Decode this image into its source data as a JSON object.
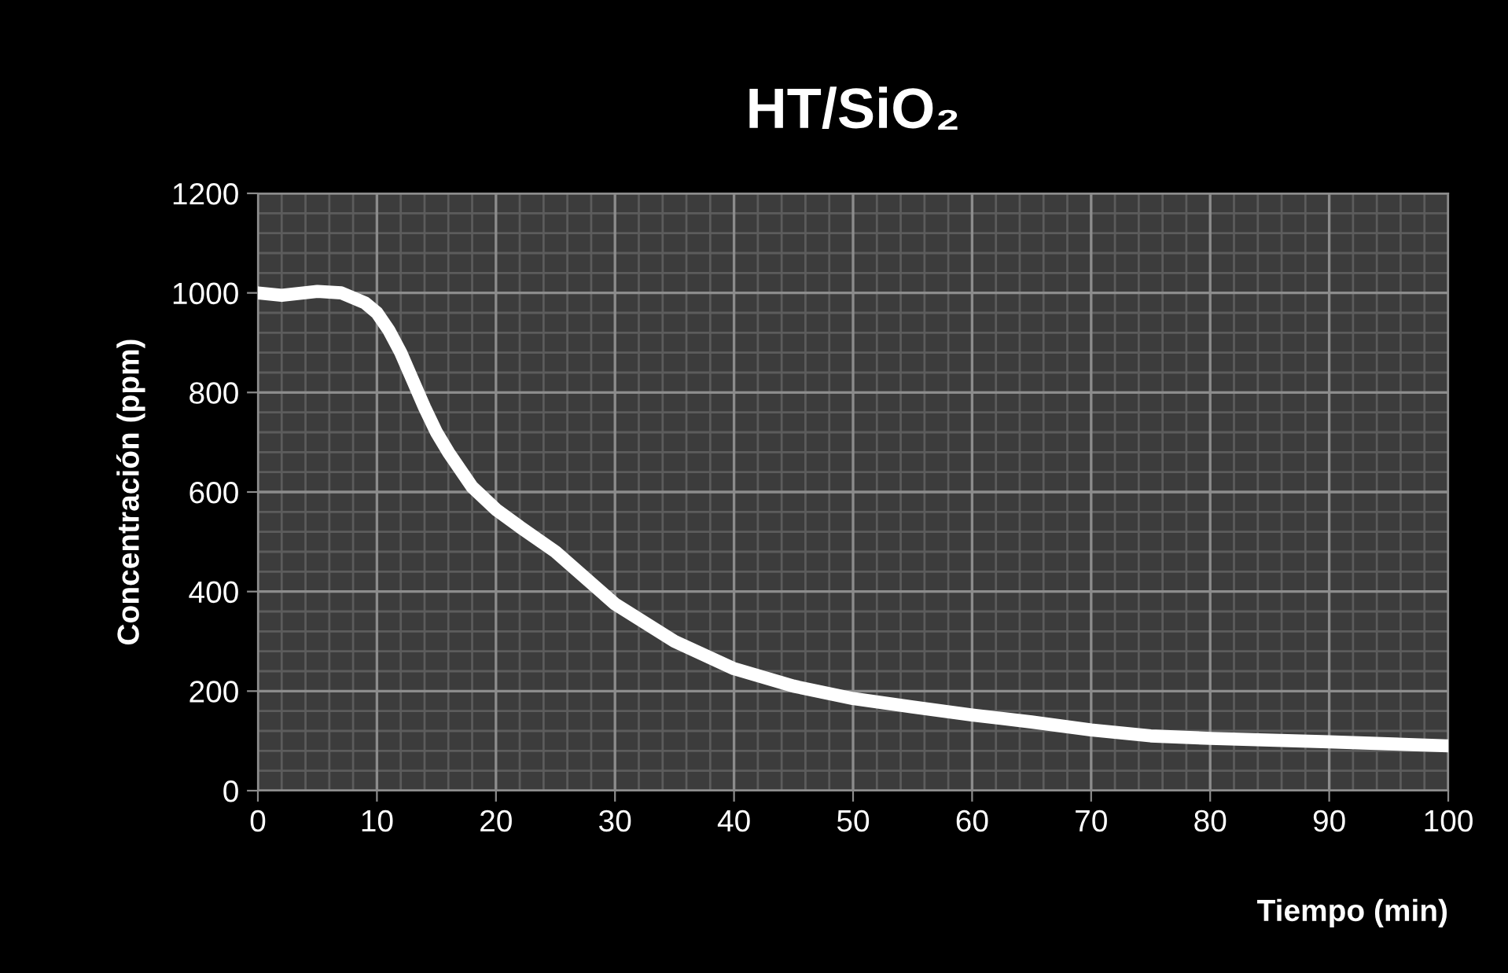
{
  "chart_data": {
    "type": "line",
    "title": "HT/SiO₂",
    "xlabel": "Tiempo (min)",
    "ylabel": "Concentración (ppm)",
    "series": [
      {
        "color": "#ffffff",
        "x": [
          0,
          2,
          5,
          7,
          9,
          10,
          11,
          12,
          13,
          14,
          15,
          16,
          18,
          20,
          22,
          25,
          30,
          35,
          40,
          45,
          50,
          55,
          60,
          65,
          70,
          75,
          80,
          90,
          100
        ],
        "values": [
          1000,
          995,
          1003,
          1000,
          980,
          960,
          925,
          880,
          825,
          770,
          720,
          680,
          610,
          565,
          530,
          480,
          375,
          300,
          245,
          210,
          185,
          168,
          152,
          138,
          122,
          110,
          105,
          98,
          90
        ]
      }
    ],
    "xlim": [
      0,
      100
    ],
    "xticks": [
      0,
      10,
      20,
      30,
      40,
      50,
      60,
      70,
      80,
      90,
      100
    ],
    "ylim": [
      0,
      1200
    ],
    "yticks": [
      0,
      200,
      400,
      600,
      800,
      1000,
      1200
    ],
    "grid": true,
    "marker": "none",
    "line_style": "solid"
  }
}
